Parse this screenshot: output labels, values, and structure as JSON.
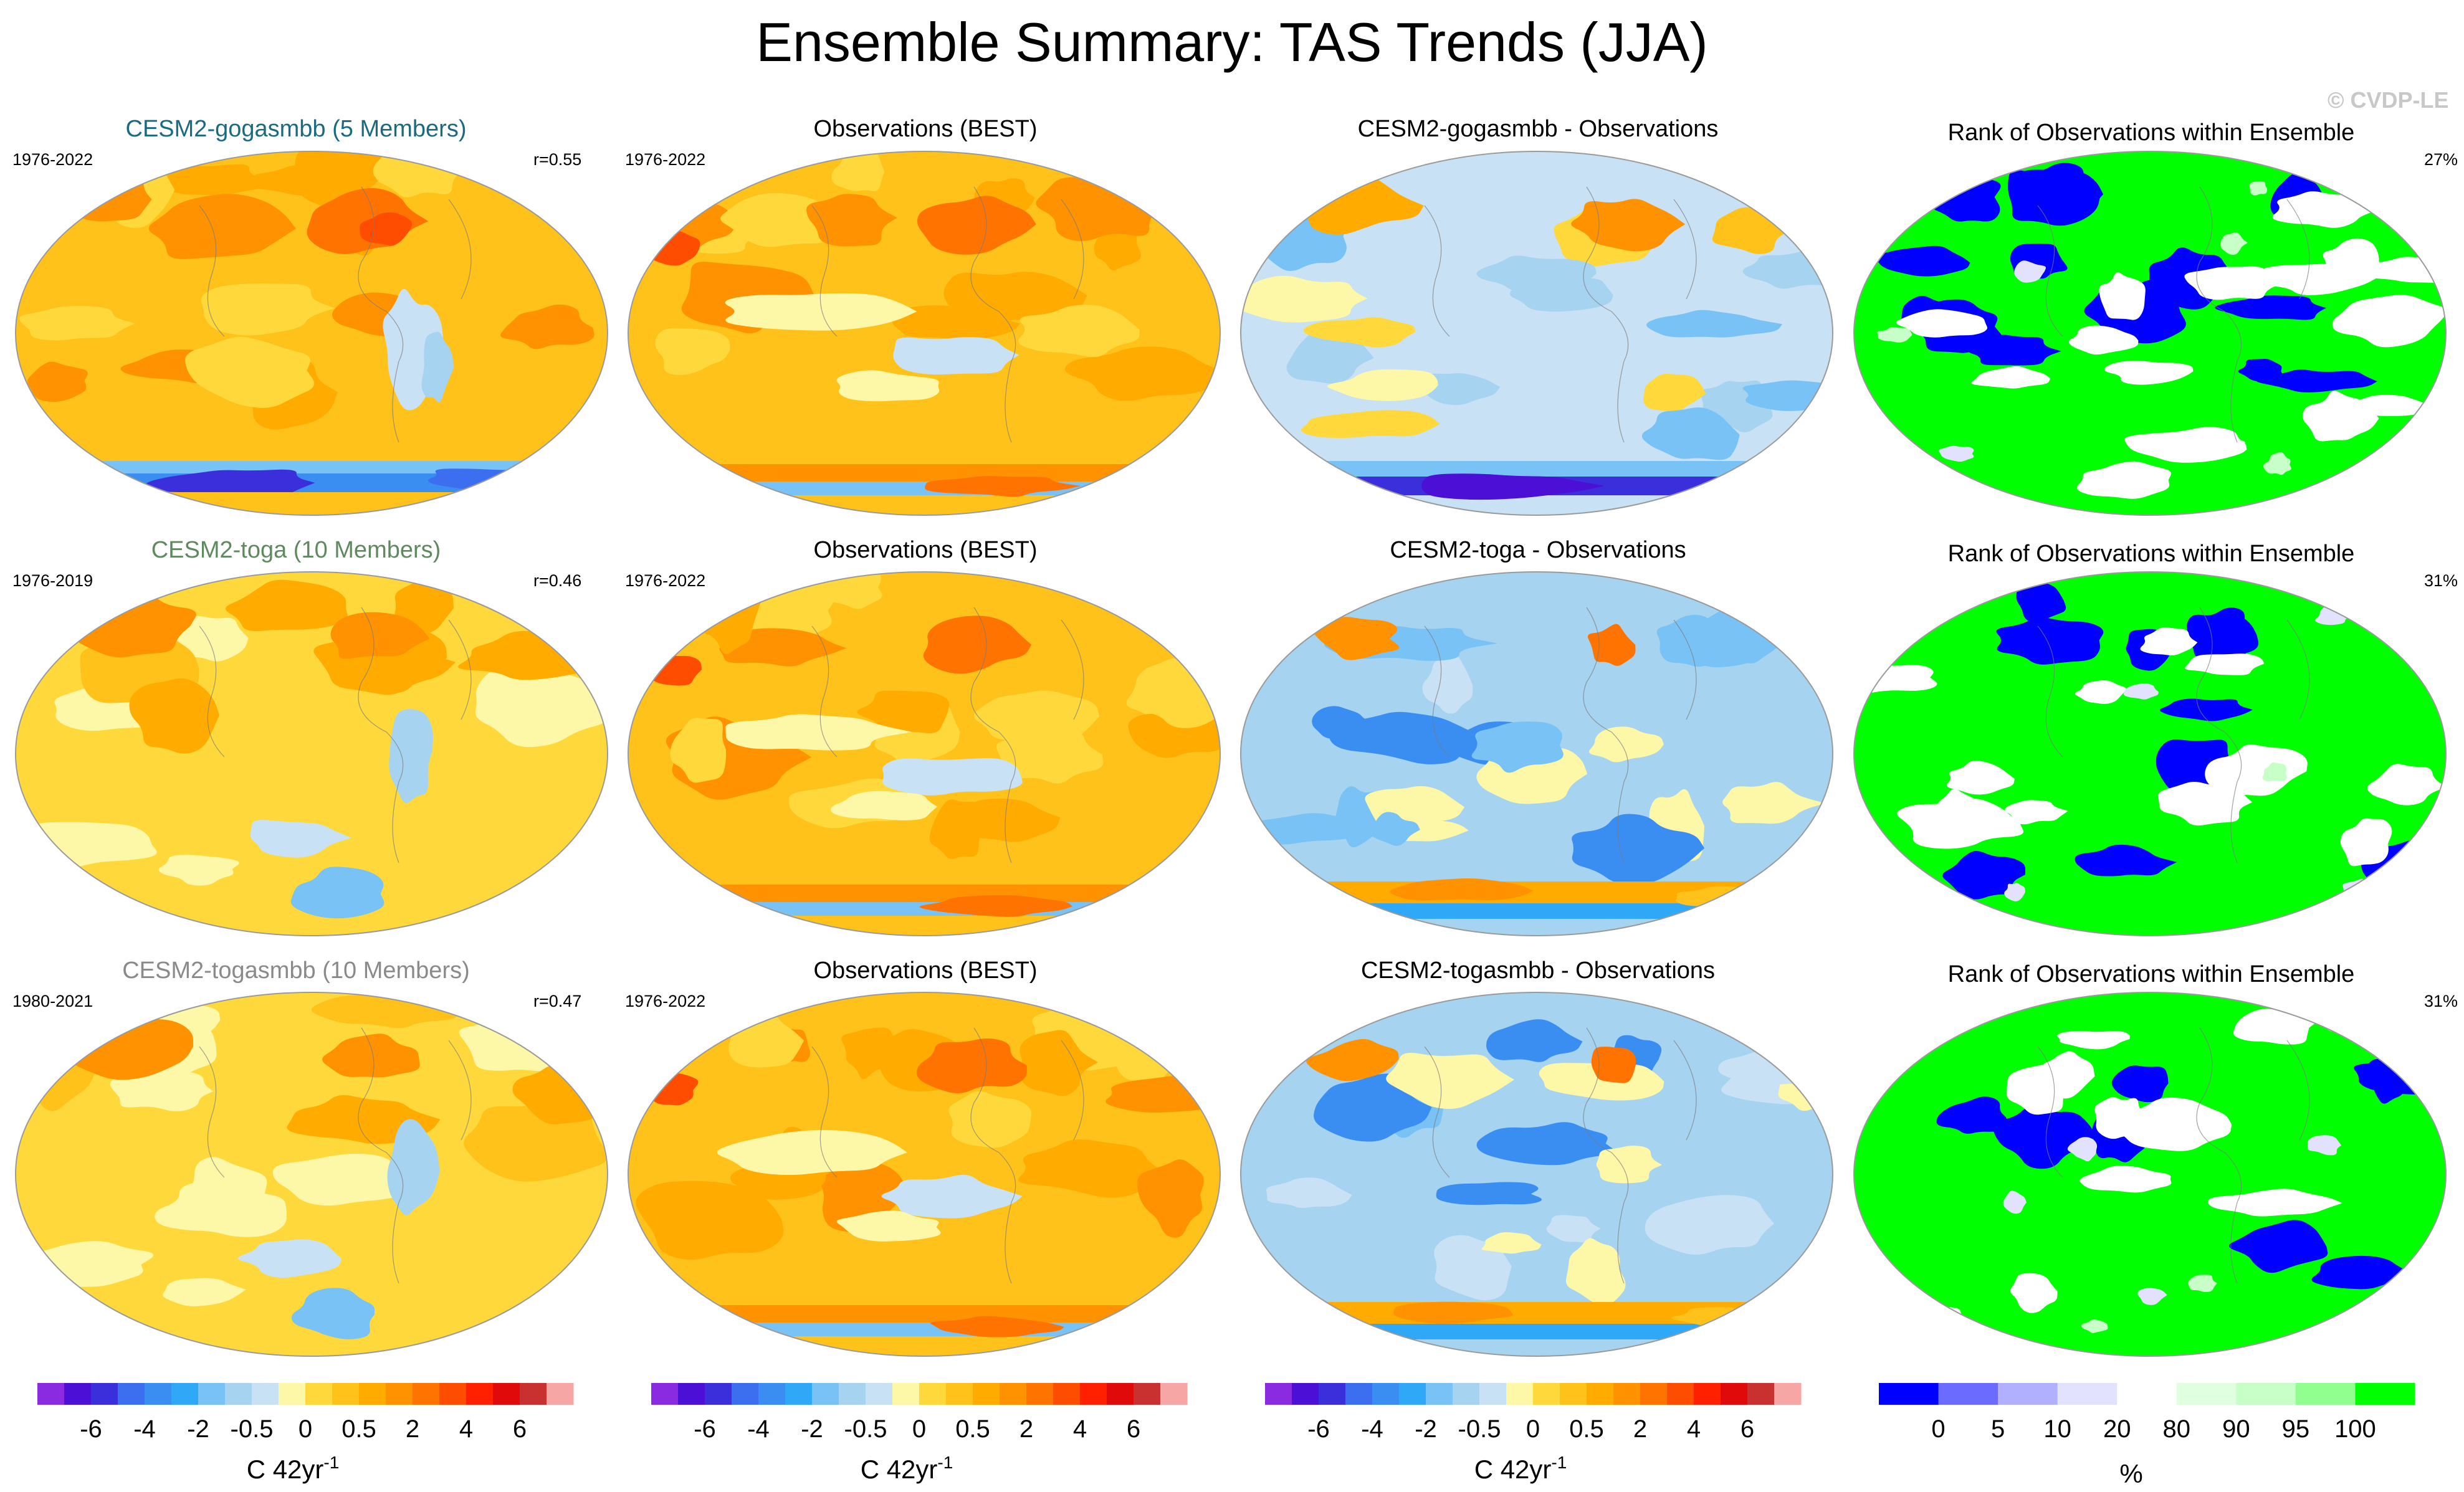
{
  "title": "Ensemble Summary: TAS Trends (JJA)",
  "watermark": "© CVDP-LE",
  "colors": {
    "title_gogasmbb": "#1a6a80",
    "title_toga": "#5f8a5f",
    "title_togasmbb": "#8a8a8a"
  },
  "rows": [
    {
      "model": {
        "title": "CESM2-gogasmbb (5 Members)",
        "period": "1976-2022",
        "r": "r=0.55",
        "pattern": "model-strong"
      },
      "obs": {
        "title": "Observations (BEST)",
        "period": "1976-2022",
        "pattern": "obs"
      },
      "diff": {
        "title": "CESM2-gogasmbb - Observations",
        "pattern": "diff-mixed"
      },
      "rank": {
        "title": "Rank of Observations within Ensemble",
        "pct": "27%",
        "pattern": "rank-a"
      }
    },
    {
      "model": {
        "title": "CESM2-toga (10 Members)",
        "period": "1976-2019",
        "r": "r=0.46",
        "pattern": "model-weak"
      },
      "obs": {
        "title": "Observations (BEST)",
        "period": "1976-2022",
        "pattern": "obs"
      },
      "diff": {
        "title": "CESM2-toga - Observations",
        "pattern": "diff-cool"
      },
      "rank": {
        "title": "Rank of Observations within Ensemble",
        "pct": "31%",
        "pattern": "rank-b"
      }
    },
    {
      "model": {
        "title": "CESM2-togasmbb (10 Members)",
        "period": "1980-2021",
        "r": "r=0.47",
        "pattern": "model-weak"
      },
      "obs": {
        "title": "Observations (BEST)",
        "period": "1976-2022",
        "pattern": "obs"
      },
      "diff": {
        "title": "CESM2-togasmbb - Observations",
        "pattern": "diff-cool"
      },
      "rank": {
        "title": "Rank of Observations within Ensemble",
        "pct": "31%",
        "pattern": "rank-c"
      }
    }
  ],
  "chart_data": {
    "type": "heatmap",
    "title": "Ensemble Summary: TAS Trends (JJA)",
    "variable": "Surface air temperature trend",
    "season": "JJA",
    "projection": "Robinson (global)",
    "trend_colorbar": {
      "unit_label": "C 42yr",
      "unit_exponent": "-1",
      "colors": [
        "#8a2be2",
        "#4b0fd6",
        "#3b2fdc",
        "#3c6ef0",
        "#3a8ef2",
        "#2ea8f7",
        "#79c2f5",
        "#a6d3f0",
        "#c8e1f4",
        "#fdf7a8",
        "#ffd93b",
        "#ffc21a",
        "#ffab00",
        "#ff9200",
        "#ff7300",
        "#ff4d00",
        "#ff2000",
        "#e00a0a",
        "#c93030",
        "#f7a6a6"
      ],
      "tick_labels": [
        "-6",
        "-4",
        "-2",
        "-0.5",
        "0",
        "0.5",
        "2",
        "4",
        "6"
      ],
      "tick_boundary_index": [
        2,
        4,
        6,
        8,
        10,
        12,
        14,
        16,
        18
      ],
      "range": [
        -8,
        8
      ]
    },
    "rank_colorbar": {
      "unit_label": "%",
      "colors": [
        "#0000ff",
        "#6b6bff",
        "#b0b0ff",
        "#e2e2ff",
        "#ffffff",
        "#e0ffe0",
        "#c8ffc8",
        "#90ff90",
        "#00ff00"
      ],
      "tick_labels": [
        "0",
        "5",
        "10",
        "20",
        "80",
        "90",
        "95",
        "100"
      ],
      "tick_boundary_index": [
        1,
        2,
        3,
        4,
        5,
        6,
        7,
        8
      ],
      "range": [
        0,
        100
      ]
    },
    "panels": [
      {
        "row": 1,
        "name": "CESM2-gogasmbb ensemble mean",
        "years": "1976-2022",
        "pattern_correlation": 0.55
      },
      {
        "row": 1,
        "name": "Observations (BEST)",
        "years": "1976-2022"
      },
      {
        "row": 1,
        "name": "CESM2-gogasmbb - Observations"
      },
      {
        "row": 1,
        "name": "Rank of observations within ensemble",
        "area_percent_outside": 27
      },
      {
        "row": 2,
        "name": "CESM2-toga ensemble mean",
        "years": "1976-2019",
        "pattern_correlation": 0.46
      },
      {
        "row": 2,
        "name": "Observations (BEST)",
        "years": "1976-2022"
      },
      {
        "row": 2,
        "name": "CESM2-toga - Observations"
      },
      {
        "row": 2,
        "name": "Rank of observations within ensemble",
        "area_percent_outside": 31
      },
      {
        "row": 3,
        "name": "CESM2-togasmbb ensemble mean",
        "years": "1980-2021",
        "pattern_correlation": 0.47
      },
      {
        "row": 3,
        "name": "Observations (BEST)",
        "years": "1976-2022"
      },
      {
        "row": 3,
        "name": "CESM2-togasmbb - Observations"
      },
      {
        "row": 3,
        "name": "Rank of observations within ensemble",
        "area_percent_outside": 31
      }
    ]
  }
}
